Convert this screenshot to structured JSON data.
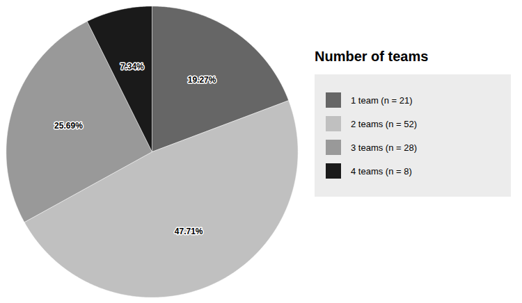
{
  "chart_data": {
    "type": "pie",
    "title": "Number of teams",
    "categories": [
      "1 team (n = 21)",
      "2 teams (n = 52)",
      "3 teams (n = 28)",
      "4 teams (n = 8)"
    ],
    "values": [
      19.27,
      47.71,
      25.69,
      7.34
    ],
    "value_labels": [
      "19.27%",
      "47.71%",
      "25.69%",
      "7.34%"
    ],
    "colors": [
      "#666666",
      "#c0c0c0",
      "#999999",
      "#1a1a1a"
    ],
    "data_labels": true,
    "legend": "right"
  }
}
